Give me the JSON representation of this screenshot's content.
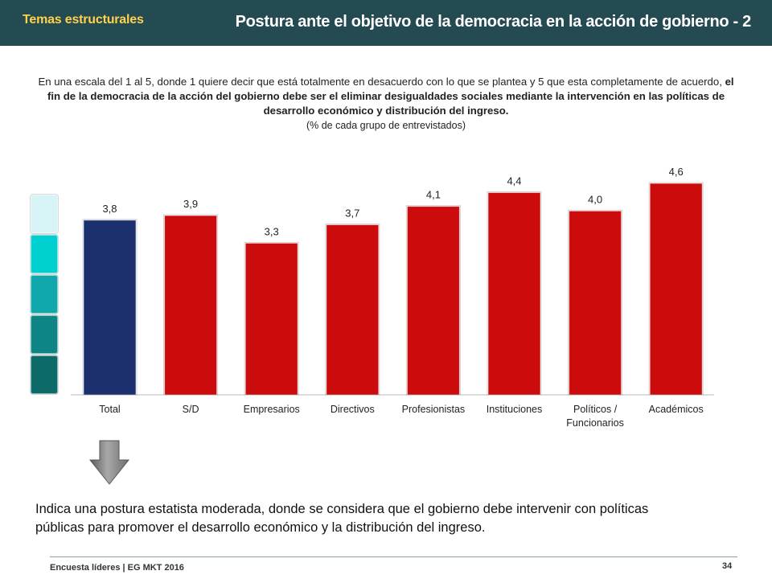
{
  "header": {
    "section_tag": "Temas estructurales",
    "title": "Postura ante el objetivo de la democracia en la acción de gobierno  - 2"
  },
  "question": {
    "intro": "En una escala del 1 al 5, donde 1 quiere decir que está totalmente en desacuerdo con lo que se plantea y 5 que esta completamente de acuerdo, ",
    "bold": "el fin de la democracia de la acción del gobierno debe ser el eliminar desigualdades sociales mediante la intervención en las políticas de desarrollo económico y distribución del ingreso.",
    "note": "(% de cada grupo de entrevistados)"
  },
  "chart_data": {
    "type": "bar",
    "categories": [
      "Total",
      "S/D",
      "Empresarios",
      "Directivos",
      "Profesionistas",
      "Instituciones",
      "Políticos / Funcionarios",
      "Académicos"
    ],
    "category_lines": [
      [
        "Total"
      ],
      [
        "S/D"
      ],
      [
        "Empresarios"
      ],
      [
        "Directivos"
      ],
      [
        "Profesionistas"
      ],
      [
        "Instituciones"
      ],
      [
        "Políticos /",
        "Funcionarios"
      ],
      [
        "Académicos"
      ]
    ],
    "values": [
      3.8,
      3.9,
      3.3,
      3.7,
      4.1,
      4.4,
      4.0,
      4.6
    ],
    "data_labels": [
      "3,8",
      "3,9",
      "3,3",
      "3,7",
      "4,1",
      "4,4",
      "4,0",
      "4,6"
    ],
    "bar_colors": [
      "#1c2f6e",
      "#cc0c0c",
      "#cc0c0c",
      "#cc0c0c",
      "#cc0c0c",
      "#cc0c0c",
      "#cc0c0c",
      "#cc0c0c"
    ],
    "title": "",
    "xlabel": "",
    "ylabel": "",
    "grid": false,
    "legend": "none"
  },
  "scale_colors": [
    "#d6f3f5",
    "#00cfd0",
    "#10a8ab",
    "#0d8585",
    "#0c6a68"
  ],
  "arrow_icon": "down-arrow-icon",
  "conclusion": "Indica una postura estatista moderada, donde se considera que el gobierno debe intervenir con políticas públicas para promover el desarrollo económico y la distribución del ingreso.",
  "footer": {
    "text": "Encuesta líderes | EG MKT 2016",
    "page": "34"
  }
}
